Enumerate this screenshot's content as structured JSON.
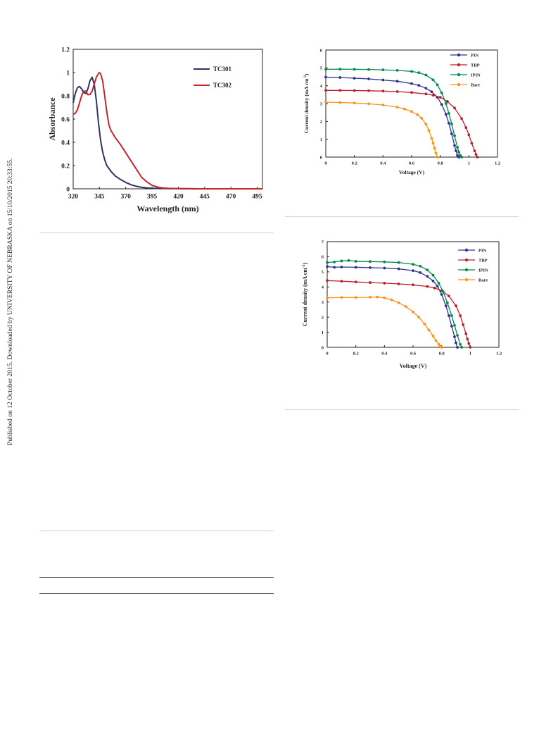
{
  "side_note": "Published on 12 October 2015. Downloaded by UNIVERSITY OF NEBRASKA on 15/10/2015 20:33:55.",
  "chart_data": [
    {
      "type": "line",
      "xlabel": "Wavelength (nm)",
      "ylabel": "Absorbance",
      "xlim": [
        320,
        500
      ],
      "ylim": [
        0,
        1.2
      ],
      "xticks": [
        "320",
        "345",
        "370",
        "395",
        "420",
        "445",
        "470",
        "495"
      ],
      "yticks": [
        "0",
        "0.2",
        "0.4",
        "0.6",
        "0.8",
        "1",
        "1.2"
      ],
      "legend_position": "top-right",
      "series": [
        {
          "name": "TC301",
          "color": "#2e3566",
          "x": [
            320,
            322,
            324,
            326,
            328,
            330,
            332,
            334,
            336,
            338,
            340,
            342,
            344,
            346,
            348,
            350,
            352,
            356,
            360,
            365,
            370,
            375,
            380,
            385,
            390,
            395,
            400,
            410,
            420,
            440,
            460,
            480,
            500
          ],
          "y": [
            0.74,
            0.82,
            0.87,
            0.88,
            0.86,
            0.83,
            0.82,
            0.86,
            0.93,
            0.96,
            0.9,
            0.76,
            0.57,
            0.42,
            0.32,
            0.25,
            0.2,
            0.15,
            0.11,
            0.08,
            0.055,
            0.035,
            0.022,
            0.013,
            0.008,
            0.005,
            0.003,
            0.002,
            0.001,
            0,
            0,
            0,
            0
          ]
        },
        {
          "name": "TC302",
          "color": "#c1272d",
          "x": [
            320,
            322,
            324,
            326,
            328,
            330,
            332,
            334,
            336,
            338,
            340,
            342,
            344,
            345,
            346,
            348,
            350,
            352,
            354,
            356,
            358,
            360,
            365,
            370,
            375,
            380,
            385,
            390,
            395,
            400,
            405,
            410,
            420,
            440,
            460,
            480,
            500
          ],
          "y": [
            0.64,
            0.65,
            0.68,
            0.74,
            0.8,
            0.84,
            0.84,
            0.81,
            0.81,
            0.84,
            0.9,
            0.96,
            0.99,
            1.0,
            0.99,
            0.93,
            0.8,
            0.66,
            0.55,
            0.5,
            0.47,
            0.44,
            0.38,
            0.31,
            0.24,
            0.17,
            0.1,
            0.06,
            0.03,
            0.015,
            0.008,
            0.004,
            0.002,
            0,
            0,
            0,
            0
          ]
        }
      ]
    },
    {
      "type": "line",
      "xlabel": "Voltage (V)",
      "ylabel": "Current density (mA cm",
      "ylabel_sup": "-2",
      "ylabel_end": ")",
      "xlim": [
        0,
        1.2
      ],
      "ylim": [
        0,
        6
      ],
      "xticks": [
        "0",
        "0.2",
        "0.4",
        "0.6",
        "0.8",
        "1",
        "1.2"
      ],
      "yticks": [
        "0",
        "1",
        "2",
        "3",
        "4",
        "5",
        "6"
      ],
      "legend_position": "top-right",
      "series": [
        {
          "name": "PIN",
          "color": "#2e3192",
          "x": [
            0,
            0.1,
            0.2,
            0.3,
            0.4,
            0.5,
            0.6,
            0.65,
            0.7,
            0.74,
            0.78,
            0.81,
            0.84,
            0.86,
            0.88,
            0.9,
            0.91,
            0.92,
            0.93
          ],
          "y": [
            4.48,
            4.46,
            4.42,
            4.38,
            4.32,
            4.25,
            4.12,
            4.02,
            3.86,
            3.66,
            3.35,
            2.95,
            2.4,
            1.9,
            1.3,
            0.65,
            0.35,
            0.1,
            0
          ]
        },
        {
          "name": "TBP",
          "color": "#be1e2d",
          "x": [
            0,
            0.1,
            0.2,
            0.3,
            0.4,
            0.5,
            0.6,
            0.7,
            0.75,
            0.8,
            0.85,
            0.9,
            0.95,
            0.98,
            1.0,
            1.02,
            1.04,
            1.05,
            1.06
          ],
          "y": [
            3.74,
            3.74,
            3.73,
            3.72,
            3.7,
            3.67,
            3.62,
            3.54,
            3.47,
            3.35,
            3.12,
            2.75,
            2.15,
            1.65,
            1.25,
            0.78,
            0.35,
            0.15,
            0
          ]
        },
        {
          "name": "IPIN",
          "color": "#00894d",
          "x": [
            0,
            0.1,
            0.2,
            0.3,
            0.4,
            0.5,
            0.6,
            0.65,
            0.7,
            0.75,
            0.78,
            0.81,
            0.84,
            0.86,
            0.88,
            0.9,
            0.92,
            0.93,
            0.94,
            0.95
          ],
          "y": [
            4.92,
            4.93,
            4.92,
            4.91,
            4.89,
            4.86,
            4.8,
            4.73,
            4.6,
            4.33,
            4.05,
            3.6,
            3.0,
            2.45,
            1.85,
            1.2,
            0.55,
            0.28,
            0.1,
            0
          ]
        },
        {
          "name": "Bare",
          "color": "#f7941d",
          "x": [
            0,
            0.1,
            0.2,
            0.3,
            0.4,
            0.5,
            0.55,
            0.6,
            0.64,
            0.67,
            0.7,
            0.72,
            0.74,
            0.75,
            0.76,
            0.77,
            0.78
          ],
          "y": [
            3.08,
            3.06,
            3.03,
            2.99,
            2.92,
            2.8,
            2.7,
            2.55,
            2.38,
            2.18,
            1.85,
            1.5,
            1.05,
            0.78,
            0.5,
            0.22,
            0
          ]
        }
      ]
    },
    {
      "type": "line",
      "xlabel": "Voltage (V)",
      "ylabel": "Current density (mA cm",
      "ylabel_sup": "-2",
      "ylabel_end": ")",
      "xlim": [
        0,
        1.2
      ],
      "ylim": [
        0,
        7
      ],
      "xticks": [
        "0",
        "0.2",
        "0.4",
        "0.6",
        "0.8",
        "1",
        "1.2"
      ],
      "yticks": [
        "0",
        "1",
        "2",
        "3",
        "4",
        "5",
        "6",
        "7"
      ],
      "legend_position": "top-right",
      "series": [
        {
          "name": "PIN",
          "color": "#2e3192",
          "x": [
            0,
            0.05,
            0.1,
            0.2,
            0.3,
            0.4,
            0.5,
            0.6,
            0.65,
            0.7,
            0.74,
            0.77,
            0.8,
            0.83,
            0.85,
            0.87,
            0.89,
            0.9,
            0.91
          ],
          "y": [
            5.35,
            5.3,
            5.32,
            5.3,
            5.28,
            5.25,
            5.2,
            5.08,
            4.95,
            4.7,
            4.4,
            4.05,
            3.5,
            2.75,
            2.1,
            1.4,
            0.7,
            0.3,
            0
          ]
        },
        {
          "name": "TBP",
          "color": "#be1e2d",
          "x": [
            0,
            0.1,
            0.2,
            0.3,
            0.4,
            0.5,
            0.6,
            0.7,
            0.75,
            0.8,
            0.85,
            0.9,
            0.93,
            0.95,
            0.97,
            0.98,
            0.99,
            1.0
          ],
          "y": [
            4.42,
            4.38,
            4.33,
            4.29,
            4.25,
            4.2,
            4.14,
            4.03,
            3.93,
            3.75,
            3.4,
            2.75,
            2.1,
            1.5,
            0.9,
            0.55,
            0.25,
            0
          ]
        },
        {
          "name": "IPIN",
          "color": "#00894d",
          "x": [
            0,
            0.05,
            0.1,
            0.15,
            0.2,
            0.3,
            0.4,
            0.5,
            0.6,
            0.65,
            0.7,
            0.74,
            0.78,
            0.81,
            0.84,
            0.87,
            0.89,
            0.91,
            0.93,
            0.94
          ],
          "y": [
            5.62,
            5.65,
            5.72,
            5.75,
            5.7,
            5.68,
            5.66,
            5.62,
            5.5,
            5.38,
            5.12,
            4.78,
            4.25,
            3.7,
            2.95,
            2.1,
            1.45,
            0.8,
            0.2,
            0
          ]
        },
        {
          "name": "Bare",
          "color": "#f7941d",
          "x": [
            0,
            0.1,
            0.2,
            0.3,
            0.35,
            0.4,
            0.45,
            0.5,
            0.55,
            0.6,
            0.64,
            0.68,
            0.71,
            0.74,
            0.76,
            0.78,
            0.79,
            0.8
          ],
          "y": [
            3.28,
            3.3,
            3.3,
            3.32,
            3.33,
            3.28,
            3.15,
            2.95,
            2.7,
            2.35,
            2.0,
            1.55,
            1.15,
            0.75,
            0.45,
            0.2,
            0.08,
            0
          ]
        }
      ]
    }
  ]
}
